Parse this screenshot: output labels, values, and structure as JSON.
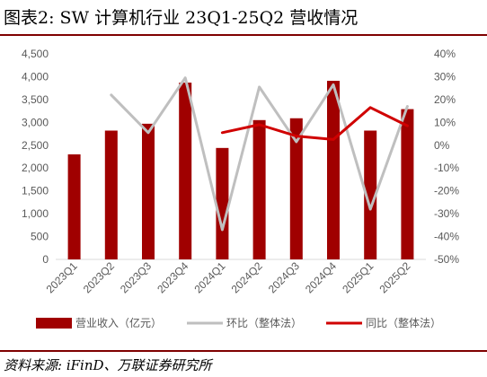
{
  "title": "图表2:  SW 计算机行业 23Q1-25Q2 营收情况",
  "source": "资料来源:  iFinD、万联证券研究所",
  "colors": {
    "revenue": "#a00000",
    "qoq": "#bfbfbf",
    "yoy": "#d00000",
    "accent": "#7f0000"
  },
  "chart_data": {
    "type": "bar",
    "categories": [
      "2023Q1",
      "2023Q2",
      "2023Q3",
      "2023Q4",
      "2024Q1",
      "2024Q2",
      "2024Q3",
      "2024Q4",
      "2025Q1",
      "2025Q2"
    ],
    "series": [
      {
        "name": "营业收入（亿元）",
        "type": "bar",
        "axis": "left",
        "values": [
          2300,
          2820,
          2970,
          3870,
          2440,
          3050,
          3090,
          3910,
          2820,
          3290
        ]
      },
      {
        "name": "环比（整体法）",
        "type": "line",
        "axis": "right",
        "values": [
          null,
          22,
          5.5,
          29.5,
          -37,
          25.5,
          1.5,
          26.5,
          -28,
          17
        ]
      },
      {
        "name": "同比（整体法）",
        "type": "line",
        "axis": "right",
        "values": [
          null,
          null,
          null,
          null,
          5.5,
          9,
          4,
          2.5,
          16.5,
          8.5
        ]
      }
    ],
    "left_axis": {
      "ylim": [
        0,
        4500
      ],
      "ticks": [
        "0",
        "500",
        "1,000",
        "1,500",
        "2,000",
        "2,500",
        "3,000",
        "3,500",
        "4,000",
        "4,500"
      ]
    },
    "right_axis": {
      "ylim": [
        -50,
        40
      ],
      "ticks": [
        "-50%",
        "-40%",
        "-30%",
        "-20%",
        "-10%",
        "0%",
        "10%",
        "20%",
        "30%",
        "40%"
      ]
    },
    "legend_position": "bottom",
    "grid": false
  }
}
